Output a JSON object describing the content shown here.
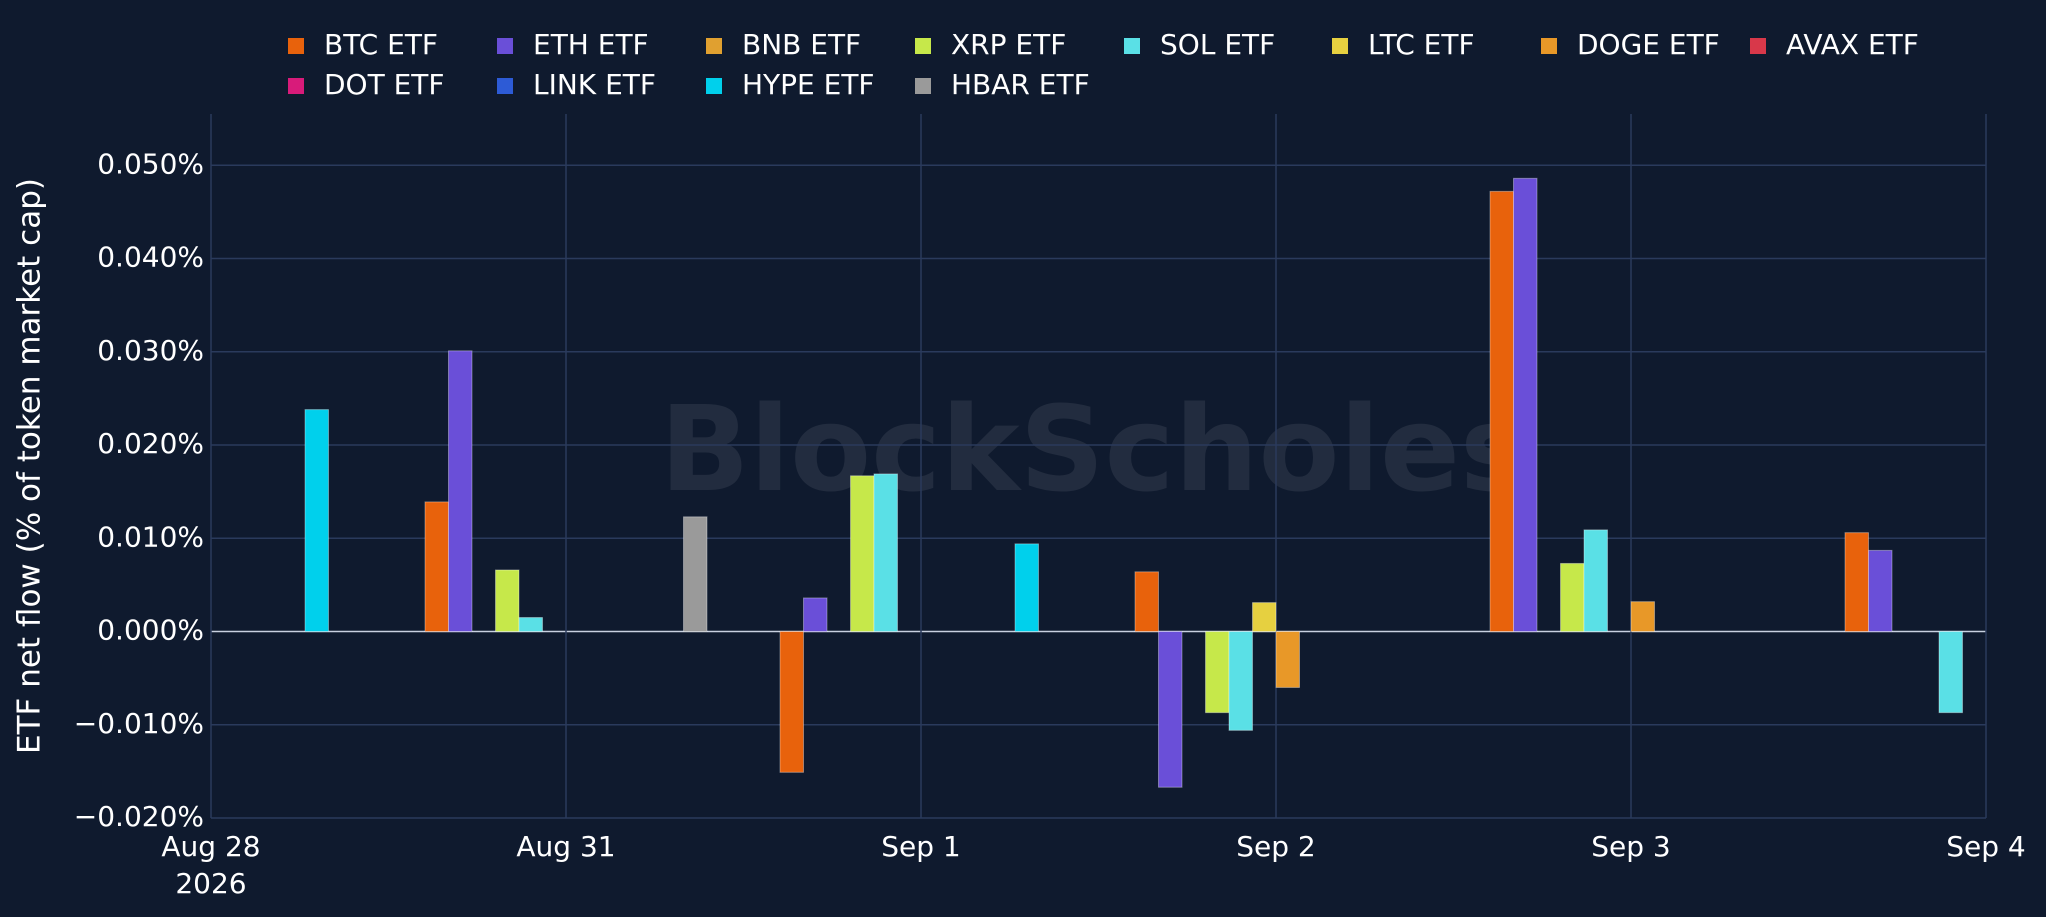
{
  "chart_data": {
    "type": "bar",
    "y_label": "ETF net flow (% of token market cap)",
    "watermark": "BlockScholes",
    "categories": [
      "Aug 28",
      "Aug 31",
      "Sep 1",
      "Sep 2",
      "Sep 3",
      "Sep 4"
    ],
    "x_year": "2026",
    "series": [
      {
        "name": "BTC ETF",
        "color": "#e8620c",
        "values": [
          0,
          0.0139,
          -0.0151,
          0.0064,
          0.0472,
          0.0106
        ]
      },
      {
        "name": "ETH ETF",
        "color": "#6a4fd8",
        "values": [
          0,
          0.0301,
          0.0036,
          -0.0167,
          0.0486,
          0.0087
        ]
      },
      {
        "name": "BNB ETF",
        "color": "#e0a030",
        "values": [
          0,
          0,
          0,
          0,
          0,
          0
        ]
      },
      {
        "name": "XRP ETF",
        "color": "#c6e84a",
        "values": [
          0,
          0.0066,
          0.0167,
          -0.0087,
          0.0073,
          0
        ]
      },
      {
        "name": "SOL ETF",
        "color": "#5ae0e6",
        "values": [
          0,
          0.0015,
          0.0169,
          -0.0106,
          0.0109,
          -0.0087
        ]
      },
      {
        "name": "LTC ETF",
        "color": "#e6d040",
        "values": [
          0,
          0,
          0,
          0.0031,
          0,
          0
        ]
      },
      {
        "name": "DOGE ETF",
        "color": "#e89828",
        "values": [
          0,
          0,
          0,
          -0.006,
          0.0032,
          0
        ]
      },
      {
        "name": "AVAX ETF",
        "color": "#d8384a",
        "values": [
          0,
          0,
          0,
          0,
          0,
          0
        ]
      },
      {
        "name": "DOT ETF",
        "color": "#d81b7a",
        "values": [
          0,
          0,
          0,
          0,
          0,
          0
        ]
      },
      {
        "name": "LINK ETF",
        "color": "#2d5bd6",
        "values": [
          0,
          0,
          0,
          0,
          0,
          0
        ]
      },
      {
        "name": "HYPE ETF",
        "color": "#00d0ec",
        "values": [
          0.0238,
          0,
          0.0094,
          0,
          0,
          0
        ]
      },
      {
        "name": "HBAR ETF",
        "color": "#9a9a9a",
        "values": [
          0,
          0.0123,
          0,
          0,
          0,
          0
        ]
      }
    ],
    "ylim": [
      -0.02,
      0.0555
    ],
    "yticks": [
      {
        "value": -0.02,
        "label": "−0.020%"
      },
      {
        "value": -0.01,
        "label": "−0.010%"
      },
      {
        "value": 0,
        "label": "0.000%"
      },
      {
        "value": 0.01,
        "label": "0.010%"
      },
      {
        "value": 0.02,
        "label": "0.020%"
      },
      {
        "value": 0.03,
        "label": "0.030%"
      },
      {
        "value": 0.04,
        "label": "0.040%"
      },
      {
        "value": 0.05,
        "label": "0.050%"
      }
    ],
    "grid": true
  }
}
